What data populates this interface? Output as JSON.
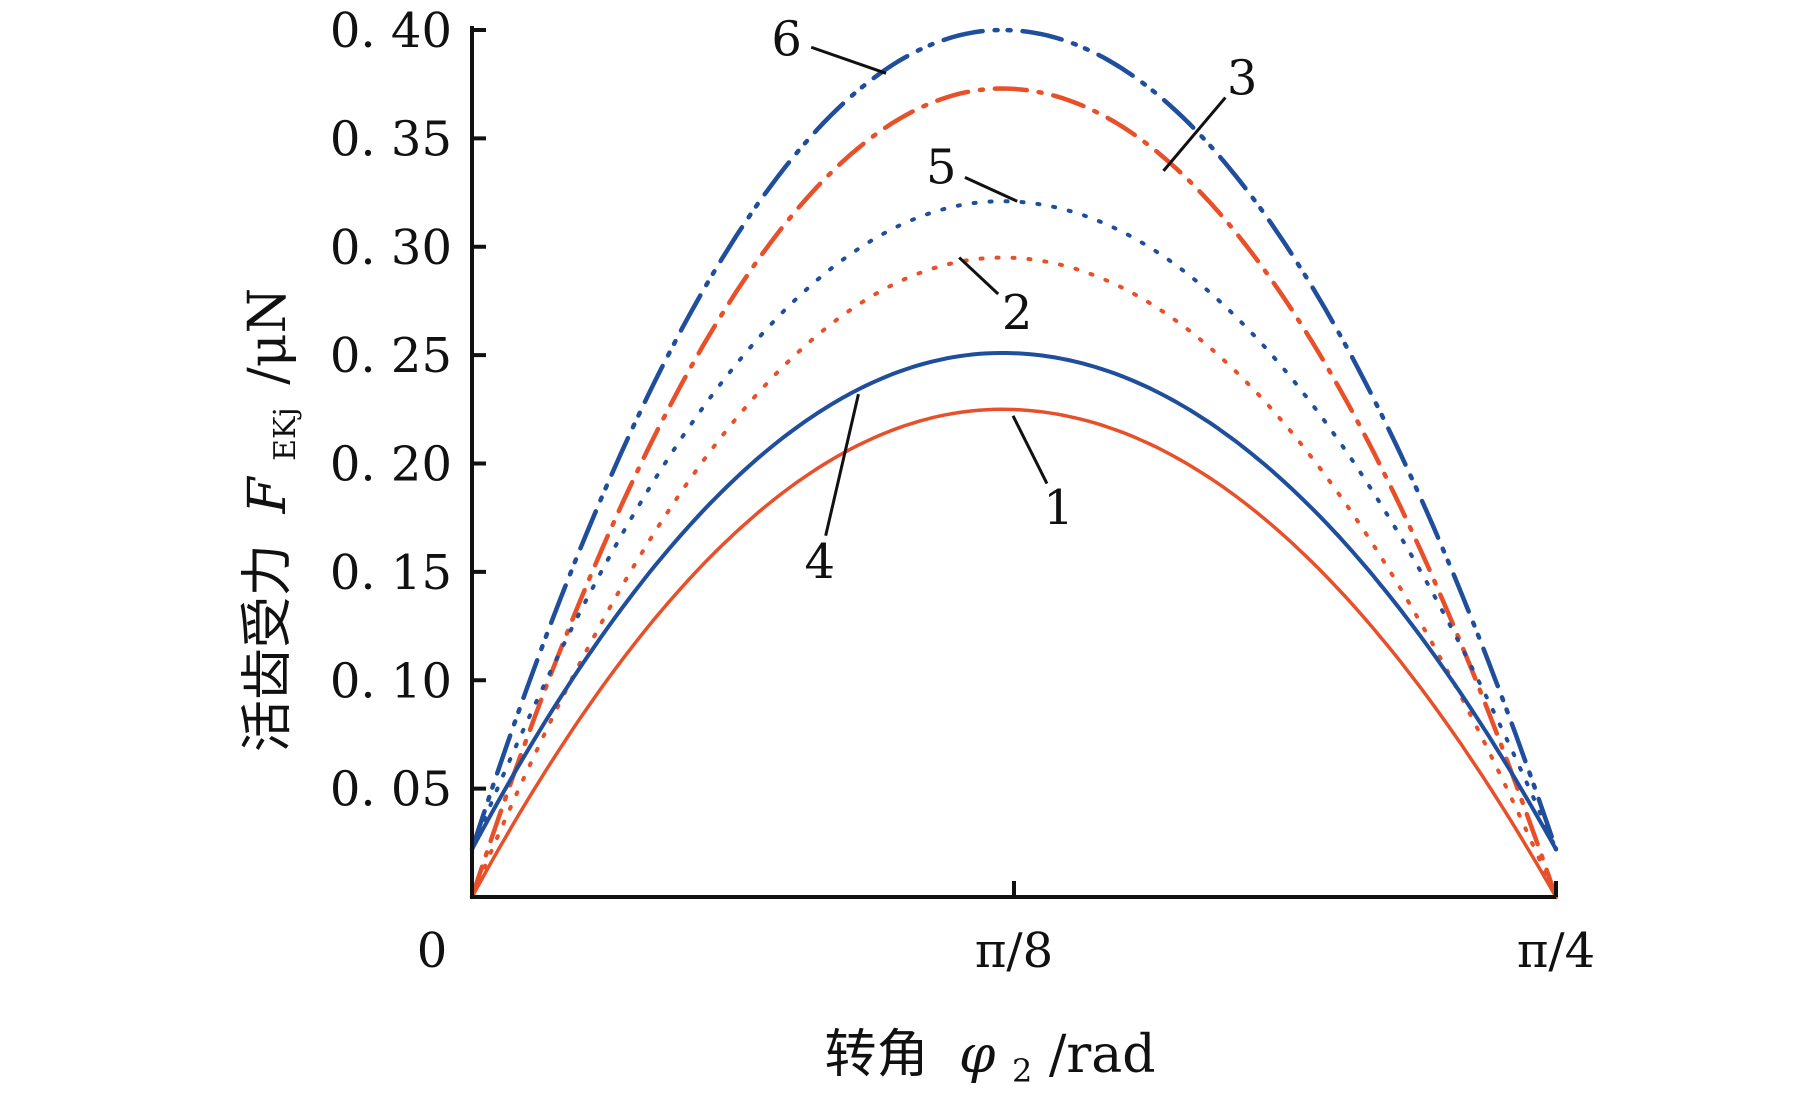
{
  "chart_data": {
    "type": "line",
    "xlabel": {
      "prefix": "转角",
      "symbol": "φ",
      "subscript": "2",
      "unit": "/rad"
    },
    "ylabel": {
      "prefix": "活齿受力",
      "symbol": "F",
      "subscript": "EKj",
      "unit": "/μN"
    },
    "x_ticks": [
      {
        "value": 0,
        "label": "0"
      },
      {
        "value": 0.3927,
        "label": "π/8"
      },
      {
        "value": 0.7854,
        "label": "π/4"
      }
    ],
    "y_ticks": [
      {
        "value": 0.05,
        "label": "0. 05"
      },
      {
        "value": 0.1,
        "label": "0. 10"
      },
      {
        "value": 0.15,
        "label": "0. 15"
      },
      {
        "value": 0.2,
        "label": "0. 20"
      },
      {
        "value": 0.25,
        "label": "0. 25"
      },
      {
        "value": 0.3,
        "label": "0. 30"
      },
      {
        "value": 0.35,
        "label": "0. 35"
      },
      {
        "value": 0.4,
        "label": "0. 40"
      }
    ],
    "xlim": [
      0,
      0.7854
    ],
    "ylim": [
      0,
      0.4
    ],
    "grid": false,
    "series": [
      {
        "label": "1",
        "color": "#e8502a",
        "dash": "",
        "width": 3.5,
        "peak": 0.225,
        "peak_x": 0.384,
        "start": 0.0,
        "end": 0.0
      },
      {
        "label": "2",
        "color": "#e8502a",
        "dash": "2 14",
        "width": 4,
        "peak": 0.295,
        "peak_x": 0.384,
        "start": 0.0,
        "end": 0.0
      },
      {
        "label": "3",
        "color": "#e8502a",
        "dash": "32 12 3 12",
        "width": 4.5,
        "peak": 0.373,
        "peak_x": 0.384,
        "start": 0.0,
        "end": 0.0
      },
      {
        "label": "4",
        "color": "#1f4e9c",
        "dash": "",
        "width": 4,
        "peak": 0.251,
        "peak_x": 0.384,
        "start": 0.022,
        "end": 0.022
      },
      {
        "label": "5",
        "color": "#1f4e9c",
        "dash": "2 14",
        "width": 4,
        "peak": 0.321,
        "peak_x": 0.384,
        "start": 0.022,
        "end": 0.022
      },
      {
        "label": "6",
        "color": "#1f4e9c",
        "dash": "40 12 3 10 3 12",
        "width": 4.5,
        "peak": 0.4,
        "peak_x": 0.384,
        "start": 0.022,
        "end": 0.022
      }
    ],
    "annotations": [
      {
        "text": "1",
        "x": 0.425,
        "y": 0.18,
        "tip_x": 0.392,
        "tip_y": 0.222
      },
      {
        "text": "2",
        "x": 0.395,
        "y": 0.27,
        "tip_x": 0.353,
        "tip_y": 0.295
      },
      {
        "text": "3",
        "x": 0.558,
        "y": 0.378,
        "tip_x": 0.501,
        "tip_y": 0.335
      },
      {
        "text": "4",
        "x": 0.252,
        "y": 0.155,
        "tip_x": 0.28,
        "tip_y": 0.232
      },
      {
        "text": "5",
        "x": 0.34,
        "y": 0.337,
        "tip_x": 0.395,
        "tip_y": 0.321
      },
      {
        "text": "6",
        "x": 0.228,
        "y": 0.396,
        "tip_x": 0.3,
        "tip_y": 0.38
      }
    ]
  }
}
